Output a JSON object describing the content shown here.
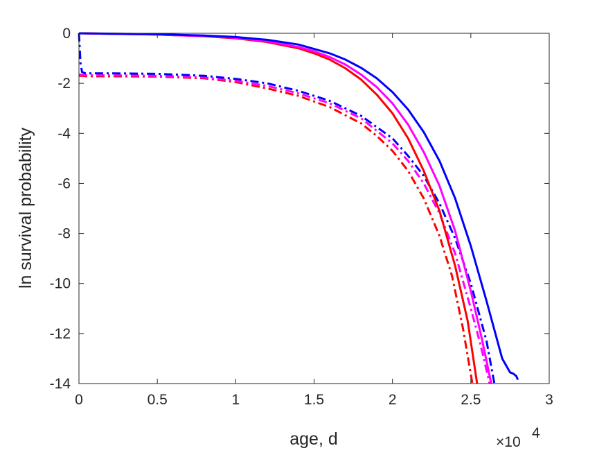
{
  "chart_data": {
    "type": "line",
    "title": "",
    "xlabel": "age, d",
    "ylabel": "ln survival probability",
    "x_multiplier": "×10",
    "x_multiplier_exponent": "4",
    "xlim": [
      0,
      30000
    ],
    "ylim": [
      -14,
      0
    ],
    "x_ticks": [
      0,
      5000,
      10000,
      15000,
      20000,
      25000,
      30000
    ],
    "x_tick_labels": [
      "0",
      "0.5",
      "1",
      "1.5",
      "2",
      "2.5",
      "3"
    ],
    "y_ticks": [
      0,
      -2,
      -4,
      -6,
      -8,
      -10,
      -12,
      -14
    ],
    "y_tick_labels": [
      "0",
      "-2",
      "-4",
      "-6",
      "-8",
      "-10",
      "-12",
      "-14"
    ],
    "grid": false,
    "legend": "none",
    "series": [
      {
        "color": "#ff0000",
        "style": "dashdot",
        "x": [
          0,
          200,
          500,
          2000,
          5000,
          8000,
          10000,
          12000,
          14000,
          16000,
          18000,
          19000,
          20000,
          21000,
          22000,
          23000,
          23800,
          24500,
          25100
        ],
        "y": [
          -1.7,
          -1.7,
          -1.72,
          -1.72,
          -1.73,
          -1.8,
          -1.95,
          -2.2,
          -2.5,
          -2.95,
          -3.6,
          -4.1,
          -4.7,
          -5.5,
          -6.6,
          -8.1,
          -9.7,
          -11.8,
          -14
        ]
      },
      {
        "color": "#ff00ff",
        "style": "dashdot",
        "x": [
          0,
          200,
          500,
          2000,
          5000,
          8000,
          10000,
          12000,
          14000,
          16000,
          18000,
          20000,
          21000,
          22000,
          23000,
          24000,
          25000,
          25600,
          26200
        ],
        "y": [
          -1.65,
          -1.66,
          -1.68,
          -1.68,
          -1.7,
          -1.77,
          -1.9,
          -2.1,
          -2.4,
          -2.8,
          -3.4,
          -4.4,
          -5.1,
          -6.0,
          -7.2,
          -8.8,
          -11.0,
          -12.4,
          -14
        ]
      },
      {
        "color": "#0000ff",
        "style": "dashdot",
        "x": [
          0,
          100,
          200,
          400,
          2000,
          5000,
          8000,
          10000,
          12000,
          14000,
          16000,
          18000,
          20000,
          21000,
          22000,
          23000,
          24000,
          25000,
          26000,
          26500
        ],
        "y": [
          0,
          -1.2,
          -1.55,
          -1.6,
          -1.6,
          -1.62,
          -1.7,
          -1.82,
          -2.0,
          -2.3,
          -2.7,
          -3.3,
          -4.2,
          -4.9,
          -5.7,
          -6.8,
          -8.2,
          -10.0,
          -12.3,
          -14
        ]
      },
      {
        "color": "#ff0000",
        "style": "solid",
        "x": [
          0,
          5000,
          8000,
          10000,
          12000,
          14000,
          15000,
          16000,
          17000,
          18000,
          19000,
          20000,
          21000,
          22000,
          23000,
          24000,
          24800,
          25400
        ],
        "y": [
          0,
          -0.05,
          -0.12,
          -0.2,
          -0.35,
          -0.6,
          -0.8,
          -1.05,
          -1.4,
          -1.85,
          -2.45,
          -3.2,
          -4.2,
          -5.5,
          -7.1,
          -9.3,
          -11.5,
          -14
        ]
      },
      {
        "color": "#ff00ff",
        "style": "solid",
        "x": [
          0,
          5000,
          8000,
          10000,
          12000,
          14000,
          15000,
          16000,
          17000,
          18000,
          19000,
          20000,
          21000,
          22000,
          23000,
          24000,
          25000,
          25700,
          26300
        ],
        "y": [
          0,
          -0.05,
          -0.11,
          -0.18,
          -0.32,
          -0.55,
          -0.72,
          -0.95,
          -1.25,
          -1.65,
          -2.15,
          -2.8,
          -3.65,
          -4.75,
          -6.1,
          -7.9,
          -10.3,
          -12.2,
          -14
        ]
      },
      {
        "color": "#0000ff",
        "style": "solid",
        "x": [
          0,
          5000,
          8000,
          10000,
          12000,
          14000,
          16000,
          17000,
          18000,
          19000,
          20000,
          21000,
          22000,
          23000,
          24000,
          25000,
          26000,
          27000,
          27500,
          27700,
          27900,
          28000
        ],
        "y": [
          0,
          -0.04,
          -0.09,
          -0.15,
          -0.26,
          -0.45,
          -0.8,
          -1.05,
          -1.38,
          -1.8,
          -2.35,
          -3.05,
          -3.95,
          -5.1,
          -6.6,
          -8.5,
          -10.7,
          -13.0,
          -13.55,
          -13.6,
          -13.7,
          -13.85
        ]
      }
    ]
  }
}
